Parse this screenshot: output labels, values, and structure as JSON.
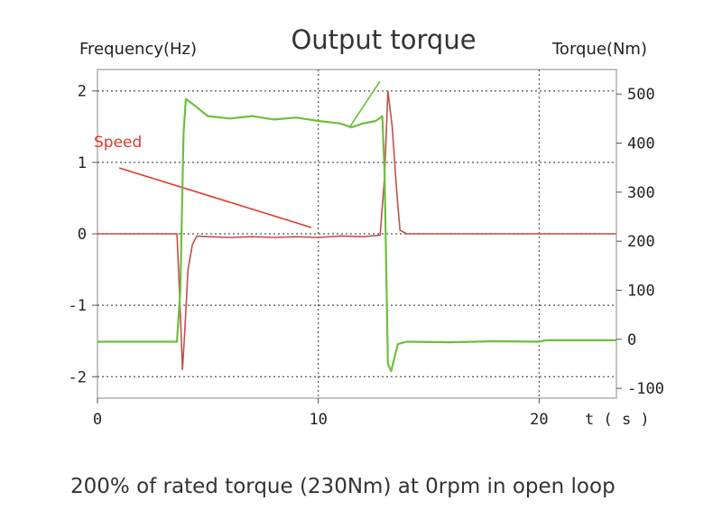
{
  "chart_data": {
    "type": "line",
    "title": "Output torque",
    "left_axis_label": "Frequency(Hz)",
    "right_axis_label": "Torque(Nm)",
    "x_axis_label": "t ( s )",
    "x_ticks": [
      "0",
      "10",
      "20"
    ],
    "left_ticks": [
      "2",
      "1",
      "0",
      "-1",
      "-2"
    ],
    "right_ticks": [
      "500",
      "400",
      "300",
      "200",
      "100",
      "0",
      "-100"
    ],
    "xlim": [
      0,
      23.5
    ],
    "left_ylim": [
      -2.3,
      2.3
    ],
    "right_ylim": [
      -120,
      550
    ],
    "grid": true,
    "annotation_label": "Speed",
    "series": [
      {
        "name": "Speed",
        "axis": "left",
        "color": "#c0504d",
        "x": [
          0,
          3.6,
          3.75,
          3.85,
          3.95,
          4.1,
          4.3,
          4.5,
          5.0,
          6,
          7,
          8,
          9,
          10,
          11,
          12,
          12.8,
          13.0,
          13.15,
          13.35,
          13.55,
          13.7,
          14,
          20,
          23.5
        ],
        "y": [
          0,
          0,
          -1.1,
          -1.9,
          -1.4,
          -0.5,
          -0.15,
          -0.03,
          -0.04,
          -0.05,
          -0.04,
          -0.05,
          -0.04,
          -0.05,
          -0.03,
          -0.04,
          -0.02,
          0.8,
          2.0,
          1.5,
          0.6,
          0.05,
          0,
          0,
          0
        ]
      },
      {
        "name": "Torque",
        "axis": "right",
        "color": "#6dbf3e",
        "x": [
          0,
          3.6,
          3.75,
          3.9,
          4.0,
          4.3,
          5,
          6,
          7,
          8,
          9,
          10,
          11,
          11.5,
          12,
          12.6,
          12.9,
          13.0,
          13.15,
          13.3,
          13.6,
          14,
          16,
          18,
          20,
          20.3,
          23.5
        ],
        "y": [
          -5,
          -5,
          100,
          420,
          490,
          480,
          455,
          450,
          455,
          448,
          452,
          445,
          440,
          432,
          440,
          445,
          455,
          340,
          -50,
          -65,
          -10,
          -5,
          -6,
          -4,
          -5,
          -2,
          -2
        ]
      }
    ]
  },
  "caption": "200% of rated torque (230Nm) at 0rpm in open loop"
}
